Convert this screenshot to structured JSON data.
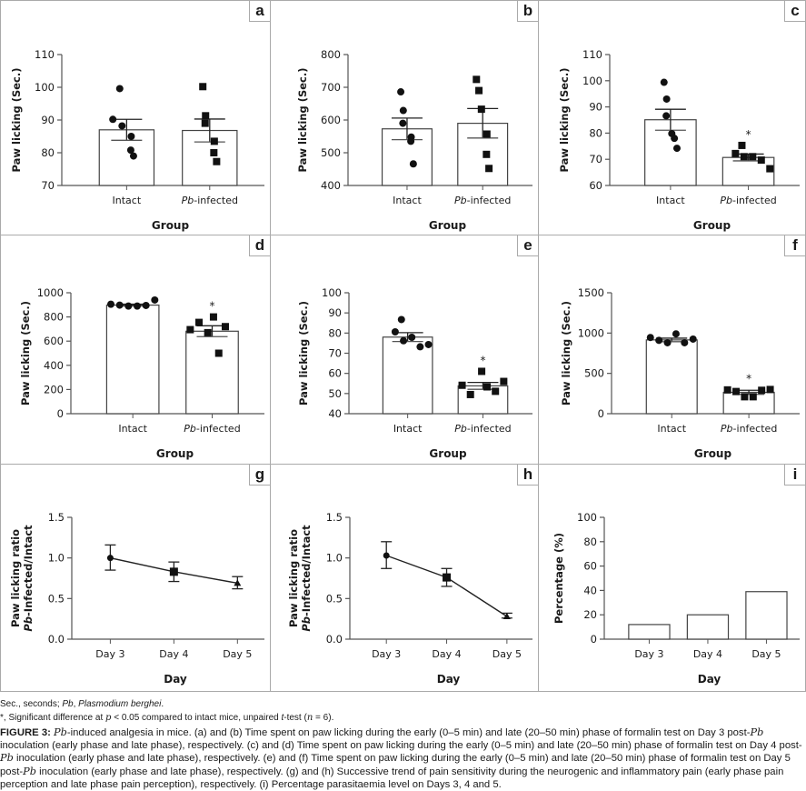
{
  "chart_data": [
    {
      "panel": "a",
      "type": "bar",
      "categories": [
        "Intact",
        "Pb-infected"
      ],
      "category_italic_prefix": [
        "",
        "Pb"
      ],
      "values": [
        87,
        86.8
      ],
      "sem": [
        3.2,
        3.5
      ],
      "points": [
        [
          99.6,
          90.2,
          88.2,
          85.0,
          80.8,
          79.0
        ],
        [
          100.2,
          91.3,
          89.0,
          83.5,
          80.0,
          77.3
        ]
      ],
      "markers": [
        "circle",
        "square"
      ],
      "significant": [
        false,
        false
      ],
      "ylabel": "Paw licking (Sec.)",
      "xlabel": "Group",
      "ylim": [
        70,
        110
      ],
      "yticks": [
        70,
        80,
        90,
        100,
        110
      ]
    },
    {
      "panel": "b",
      "type": "bar",
      "categories": [
        "Intact",
        "Pb-infected"
      ],
      "category_italic_prefix": [
        "",
        "Pb"
      ],
      "values": [
        573,
        590
      ],
      "sem": [
        33,
        45
      ],
      "points": [
        [
          686,
          629,
          590,
          548,
          535,
          466
        ],
        [
          724,
          690,
          633,
          557,
          495,
          452
        ]
      ],
      "markers": [
        "circle",
        "square"
      ],
      "significant": [
        false,
        false
      ],
      "ylabel": "Paw licking (Sec.)",
      "xlabel": "Group",
      "ylim": [
        400,
        800
      ],
      "yticks": [
        400,
        500,
        600,
        700,
        800
      ]
    },
    {
      "panel": "c",
      "type": "bar",
      "categories": [
        "Intact",
        "Pb-infected"
      ],
      "category_italic_prefix": [
        "",
        "Pb"
      ],
      "values": [
        85.1,
        70.7
      ],
      "sem": [
        4.0,
        1.3
      ],
      "points": [
        [
          99.4,
          93.0,
          86.6,
          79.8,
          78.0,
          74.2
        ],
        [
          75.3,
          72.2,
          71.0,
          71.0,
          69.7,
          66.4
        ]
      ],
      "markers": [
        "circle",
        "square"
      ],
      "significant": [
        false,
        true
      ],
      "ylabel": "Paw licking (Sec.)",
      "xlabel": "Group",
      "ylim": [
        60,
        110
      ],
      "yticks": [
        60,
        70,
        80,
        90,
        100,
        110
      ]
    },
    {
      "panel": "d",
      "type": "bar",
      "categories": [
        "Intact",
        "Pb-infected"
      ],
      "category_italic_prefix": [
        "",
        "Pb"
      ],
      "values": [
        898,
        682
      ],
      "sem": [
        8,
        45
      ],
      "points": [
        [
          905,
          898,
          890,
          890,
          895,
          940
        ],
        [
          695,
          755,
          670,
          800,
          720,
          500
        ]
      ],
      "markers": [
        "circle",
        "square"
      ],
      "significant": [
        false,
        true
      ],
      "ylabel": "Paw licking (Sec.)",
      "xlabel": "Group",
      "ylim": [
        0,
        1000
      ],
      "yticks": [
        0,
        200,
        400,
        600,
        800,
        1000
      ]
    },
    {
      "panel": "e",
      "type": "bar",
      "categories": [
        "Intact",
        "Pb-infected"
      ],
      "category_italic_prefix": [
        "",
        "Pb"
      ],
      "values": [
        78,
        53.8
      ],
      "sem": [
        2.2,
        1.7
      ],
      "points": [
        [
          86.7,
          80.6,
          76.2,
          77.9,
          73.2,
          74.3
        ],
        [
          54.1,
          49.5,
          61.0,
          53.3,
          51.1,
          56.0
        ]
      ],
      "markers": [
        "circle",
        "square"
      ],
      "significant": [
        false,
        true
      ],
      "ylabel": "Paw licking (Sec.)",
      "xlabel": "Group",
      "ylim": [
        40,
        100
      ],
      "yticks": [
        40,
        50,
        60,
        70,
        80,
        90,
        100
      ]
    },
    {
      "panel": "f",
      "type": "bar",
      "categories": [
        "Intact",
        "Pb-infected"
      ],
      "category_italic_prefix": [
        "",
        "Pb"
      ],
      "values": [
        915,
        265
      ],
      "sem": [
        22,
        25
      ],
      "points": [
        [
          945,
          910,
          880,
          990,
          880,
          925
        ],
        [
          295,
          275,
          210,
          210,
          290,
          300
        ]
      ],
      "markers": [
        "circle",
        "square"
      ],
      "significant": [
        false,
        true
      ],
      "ylabel": "Paw licking (Sec.)",
      "xlabel": "Group",
      "ylim": [
        0,
        1500
      ],
      "yticks": [
        0,
        500,
        1000,
        1500
      ]
    },
    {
      "panel": "g",
      "type": "line",
      "x": [
        "Day 3",
        "Day 4",
        "Day 5"
      ],
      "values": [
        1.0,
        0.83,
        0.69
      ],
      "err_low": [
        0.85,
        0.71,
        0.62
      ],
      "err_high": [
        1.16,
        0.95,
        0.77
      ],
      "markers": [
        "circle",
        "square",
        "triangle"
      ],
      "ylabel_line1": "Paw licking ratio",
      "ylabel_line2_italic": "Pb",
      "ylabel_line2_rest": "-Infected/Intact",
      "xlabel": "Day",
      "ylim": [
        0,
        1.5
      ],
      "yticks": [
        "0.0",
        "0.5",
        "1.0",
        "1.5"
      ]
    },
    {
      "panel": "h",
      "type": "line",
      "x": [
        "Day 3",
        "Day 4",
        "Day 5"
      ],
      "values": [
        1.03,
        0.76,
        0.28
      ],
      "err_low": [
        0.87,
        0.65,
        0.26
      ],
      "err_high": [
        1.2,
        0.87,
        0.32
      ],
      "markers": [
        "circle",
        "square",
        "triangle"
      ],
      "ylabel_line1": "Paw licking ratio",
      "ylabel_line2_italic": "Pb",
      "ylabel_line2_rest": "-Infected/Intact",
      "xlabel": "Day",
      "ylim": [
        0,
        1.5
      ],
      "yticks": [
        "0.0",
        "0.5",
        "1.0",
        "1.5"
      ]
    },
    {
      "panel": "i",
      "type": "bar",
      "categories": [
        "Day 3",
        "Day 4",
        "Day 5"
      ],
      "values": [
        12,
        20,
        39
      ],
      "ylabel": "Percentage (%)",
      "xlabel": "Day",
      "ylim": [
        0,
        100
      ],
      "yticks": [
        0,
        20,
        40,
        60,
        80,
        100
      ]
    }
  ],
  "panel_labels": [
    "a",
    "b",
    "c",
    "d",
    "e",
    "f",
    "g",
    "h",
    "i"
  ],
  "notes": {
    "abbrev_prefix": "Sec., seconds; ",
    "abbrev_pb": "Pb",
    "abbrev_mid": ", ",
    "abbrev_species": "Plasmodium berghei",
    "abbrev_end": ".",
    "sig_star": "*",
    "sig_text1": ", Significant difference at ",
    "sig_p": "p",
    "sig_text2": " < 0.05 compared to intact mice, unpaired ",
    "sig_t": "t",
    "sig_text3": "-test (",
    "sig_n": "n",
    "sig_text4": " = 6)."
  },
  "caption": {
    "label": "FIGURE 3: ",
    "pb1": "Pb",
    "text1": "-induced analgesia in mice. (a) and (b) Time spent on paw licking during the early (0–5 min) and late (20–50 min) phase of formalin test on Day 3 post-",
    "pb2": "Pb",
    "text2": " inoculation (early phase and late phase), respectively. (c) and (d) Time spent on paw licking during the early (0–5 min) and late (20–50 min) phase of formalin test on Day 4 post-",
    "pb3": "Pb",
    "text3": " inoculation (early phase and late phase), respectively. (e) and (f) Time spent on paw licking during the early (0–5 min) and late (20–50 min) phase of formalin test on Day 5 post-",
    "pb4": "Pb",
    "text4": " inoculation (early phase and late phase), respectively. (g) and (h) Successive trend of pain sensitivity during the neurogenic and inflammatory pain (early phase pain perception and late phase pain perception), respectively. (i) Percentage parasitaemia level on Days 3, 4 and 5."
  }
}
